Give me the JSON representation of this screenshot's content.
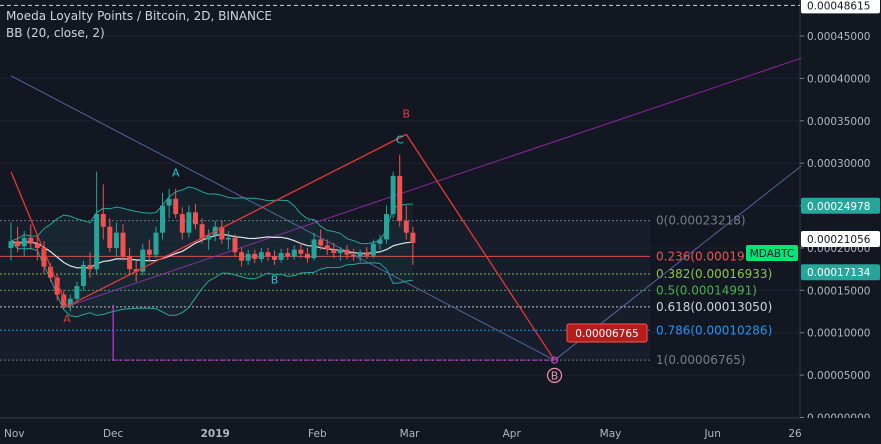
{
  "header": {
    "title": "Moeda Loyalty Points / Bitcoin, 2D, BINANCE",
    "indicator": "BB (20, close, 2)"
  },
  "colors": {
    "background": "#131722",
    "up": "#26a69a",
    "down": "#ef5350",
    "pattern": "#e53935",
    "bb_band": "#26a69a",
    "bb_basis": "#e0e3eb",
    "diag_trend": "#5b6da8",
    "diag_purple": "#9c27b0",
    "symbol_tag": "#00e676"
  },
  "chart_data": {
    "type": "candlestick",
    "title": "Moeda Loyalty Points / Bitcoin, 2D, BINANCE",
    "symbol_tag": "MDABTC",
    "x_tick_labels": [
      "Nov",
      "Dec",
      "2019",
      "Feb",
      "Mar",
      "Apr",
      "May",
      "Jun",
      "26"
    ],
    "y_tick_labels": [
      "0.00048615",
      "0.00045000",
      "0.00040000",
      "0.00035000",
      "0.00030000",
      "0.00025000",
      "0.00020000",
      "0.00015000",
      "0.00010000",
      "0.00005000",
      "0.00000000"
    ],
    "y_range": [
      -6e-07,
      0.0004925
    ],
    "price_tags": [
      {
        "label": "0.00048615",
        "value": 0.00048615,
        "style": "white"
      },
      {
        "label": "0.00024978",
        "value": 0.00024978,
        "style": "teal"
      },
      {
        "label": "0.00021056",
        "value": 0.00021056,
        "style": "white"
      },
      {
        "label": "0.00017134",
        "value": 0.00017134,
        "style": "teal"
      }
    ],
    "target_tag": {
      "label": "0.00006765",
      "value": 6.765e-05
    },
    "fibonacci": [
      {
        "label": "0(0.00023218)",
        "value": 0.00023218,
        "color": "#787b86"
      },
      {
        "label": "0.236(0.00019",
        "value": 0.00019,
        "color": "#ef5350"
      },
      {
        "label": "0.382(0.00016933)",
        "value": 0.00016933,
        "color": "#8bc34a"
      },
      {
        "label": "0.5(0.00014991)",
        "value": 0.00014991,
        "color": "#4caf50"
      },
      {
        "label": "0.618(0.00013050)",
        "value": 0.0001305,
        "color": "#d1d4dc"
      },
      {
        "label": "0.786(0.00010286)",
        "value": 0.00010286,
        "color": "#2196f3"
      },
      {
        "label": "1(0.00006765)",
        "value": 6.765e-05,
        "color": "#787b86"
      }
    ],
    "pattern_labels": [
      {
        "label": "A",
        "color": "#e53935",
        "x": "2018-11-17",
        "y": 0.000112
      },
      {
        "label": "A",
        "color": "#26c6da",
        "x": "2018-12-20",
        "y": 0.000284
      },
      {
        "label": "B",
        "color": "#26c6da",
        "x": "2019-01-19",
        "y": 0.000158
      },
      {
        "label": "B",
        "color": "#e53935",
        "x": "2019-02-28",
        "y": 0.000354
      },
      {
        "label": "C",
        "color": "#26c6da",
        "x": "2019-02-26",
        "y": 0.000323
      },
      {
        "label": "B",
        "color": "#f48fb1",
        "x": "2019-04-14",
        "y": 4.5e-05
      }
    ],
    "harmonic_path": [
      {
        "x": "2018-10-31",
        "y": 0.00029
      },
      {
        "x": "2018-11-17",
        "y": 0.000131
      },
      {
        "x": "2019-02-28",
        "y": 0.000334
      },
      {
        "x": "2019-04-14",
        "y": 6.76e-05
      }
    ],
    "trend_lines": [
      {
        "name": "descending",
        "from": {
          "x": "2018-10-31",
          "y": 0.000403
        },
        "to": {
          "x": "2019-04-14",
          "y": 6.76e-05
        }
      },
      {
        "name": "rising",
        "from": {
          "x": "2019-04-14",
          "y": 6.76e-05
        },
        "to": {
          "x": "2019-06-28",
          "y": 0.000297
        }
      },
      {
        "name": "channel",
        "from": {
          "x": "2018-11-17",
          "y": 0.000131
        },
        "to": {
          "x": "2019-06-28",
          "y": 0.000424
        }
      }
    ],
    "projection": {
      "from": {
        "x": "2018-12-01",
        "y": 0.000133
      },
      "to": {
        "x": "2019-04-14",
        "y": 6.76e-05
      }
    },
    "series": [
      {
        "name": "MDABTC",
        "ohlc": [
          {
            "t": "2018-10-31",
            "o": 0.0002,
            "h": 0.00023,
            "l": 0.000185,
            "c": 0.000208
          },
          {
            "t": "2018-11-02",
            "o": 0.000208,
            "h": 0.000225,
            "l": 0.000195,
            "c": 0.000202
          },
          {
            "t": "2018-11-04",
            "o": 0.000202,
            "h": 0.00022,
            "l": 0.00019,
            "c": 0.000212
          },
          {
            "t": "2018-11-06",
            "o": 0.000212,
            "h": 0.000228,
            "l": 0.000198,
            "c": 0.000205
          },
          {
            "t": "2018-11-08",
            "o": 0.000205,
            "h": 0.000215,
            "l": 0.000185,
            "c": 0.0002
          },
          {
            "t": "2018-11-10",
            "o": 0.0002,
            "h": 0.000208,
            "l": 0.00017,
            "c": 0.000178
          },
          {
            "t": "2018-11-12",
            "o": 0.000178,
            "h": 0.000182,
            "l": 0.00016,
            "c": 0.000165
          },
          {
            "t": "2018-11-14",
            "o": 0.000165,
            "h": 0.00017,
            "l": 0.000138,
            "c": 0.000145
          },
          {
            "t": "2018-11-16",
            "o": 0.000145,
            "h": 0.00015,
            "l": 0.000128,
            "c": 0.000132
          },
          {
            "t": "2018-11-18",
            "o": 0.000132,
            "h": 0.000145,
            "l": 0.000125,
            "c": 0.00014
          },
          {
            "t": "2018-11-20",
            "o": 0.00014,
            "h": 0.00016,
            "l": 0.000135,
            "c": 0.000155
          },
          {
            "t": "2018-11-22",
            "o": 0.000155,
            "h": 0.000185,
            "l": 0.00015,
            "c": 0.00018
          },
          {
            "t": "2018-11-24",
            "o": 0.00018,
            "h": 0.000195,
            "l": 0.000165,
            "c": 0.000175
          },
          {
            "t": "2018-11-26",
            "o": 0.000175,
            "h": 0.00029,
            "l": 0.00017,
            "c": 0.00024
          },
          {
            "t": "2018-11-28",
            "o": 0.00024,
            "h": 0.000275,
            "l": 0.00021,
            "c": 0.000225
          },
          {
            "t": "2018-11-30",
            "o": 0.000225,
            "h": 0.000235,
            "l": 0.000195,
            "c": 0.0002
          },
          {
            "t": "2018-12-02",
            "o": 0.0002,
            "h": 0.00023,
            "l": 0.00019,
            "c": 0.000218
          },
          {
            "t": "2018-12-04",
            "o": 0.000218,
            "h": 0.000228,
            "l": 0.000185,
            "c": 0.00019
          },
          {
            "t": "2018-12-06",
            "o": 0.00019,
            "h": 0.0002,
            "l": 0.00017,
            "c": 0.000175
          },
          {
            "t": "2018-12-08",
            "o": 0.000175,
            "h": 0.000185,
            "l": 0.00016,
            "c": 0.000172
          },
          {
            "t": "2018-12-10",
            "o": 0.000172,
            "h": 0.000205,
            "l": 0.000168,
            "c": 0.000198
          },
          {
            "t": "2018-12-12",
            "o": 0.000198,
            "h": 0.00021,
            "l": 0.000185,
            "c": 0.000192
          },
          {
            "t": "2018-12-14",
            "o": 0.000192,
            "h": 0.000225,
            "l": 0.000188,
            "c": 0.000218
          },
          {
            "t": "2018-12-16",
            "o": 0.000218,
            "h": 0.000265,
            "l": 0.00021,
            "c": 0.00025
          },
          {
            "t": "2018-12-18",
            "o": 0.00025,
            "h": 0.00027,
            "l": 0.000235,
            "c": 0.000258
          },
          {
            "t": "2018-12-20",
            "o": 0.000258,
            "h": 0.00027,
            "l": 0.000235,
            "c": 0.00024
          },
          {
            "t": "2018-12-22",
            "o": 0.00024,
            "h": 0.000248,
            "l": 0.00021,
            "c": 0.000218
          },
          {
            "t": "2018-12-24",
            "o": 0.000218,
            "h": 0.00025,
            "l": 0.000212,
            "c": 0.000242
          },
          {
            "t": "2018-12-26",
            "o": 0.000242,
            "h": 0.000252,
            "l": 0.000222,
            "c": 0.000228
          },
          {
            "t": "2018-12-28",
            "o": 0.000228,
            "h": 0.000235,
            "l": 0.000205,
            "c": 0.00021
          },
          {
            "t": "2018-12-30",
            "o": 0.00021,
            "h": 0.000222,
            "l": 0.000198,
            "c": 0.000215
          },
          {
            "t": "2019-01-01",
            "o": 0.000215,
            "h": 0.000232,
            "l": 0.000208,
            "c": 0.000225
          },
          {
            "t": "2019-01-03",
            "o": 0.000225,
            "h": 0.000232,
            "l": 0.000205,
            "c": 0.00021
          },
          {
            "t": "2019-01-05",
            "o": 0.00021,
            "h": 0.00022,
            "l": 0.000198,
            "c": 0.000212
          },
          {
            "t": "2019-01-07",
            "o": 0.000212,
            "h": 0.000216,
            "l": 0.00019,
            "c": 0.000195
          },
          {
            "t": "2019-01-09",
            "o": 0.000195,
            "h": 0.0002,
            "l": 0.000178,
            "c": 0.000185
          },
          {
            "t": "2019-01-11",
            "o": 0.000185,
            "h": 0.000198,
            "l": 0.00018,
            "c": 0.000193
          },
          {
            "t": "2019-01-13",
            "o": 0.000193,
            "h": 0.000198,
            "l": 0.000182,
            "c": 0.000187
          },
          {
            "t": "2019-01-15",
            "o": 0.000187,
            "h": 0.0002,
            "l": 0.000183,
            "c": 0.000195
          },
          {
            "t": "2019-01-17",
            "o": 0.000195,
            "h": 0.0002,
            "l": 0.000185,
            "c": 0.00019
          },
          {
            "t": "2019-01-19",
            "o": 0.00019,
            "h": 0.000197,
            "l": 0.00018,
            "c": 0.000186
          },
          {
            "t": "2019-01-21",
            "o": 0.000186,
            "h": 0.000199,
            "l": 0.000183,
            "c": 0.000194
          },
          {
            "t": "2019-01-23",
            "o": 0.000194,
            "h": 0.0002,
            "l": 0.000186,
            "c": 0.00019
          },
          {
            "t": "2019-01-25",
            "o": 0.00019,
            "h": 0.000203,
            "l": 0.000186,
            "c": 0.000198
          },
          {
            "t": "2019-01-27",
            "o": 0.000198,
            "h": 0.000206,
            "l": 0.000188,
            "c": 0.000193
          },
          {
            "t": "2019-01-29",
            "o": 0.000193,
            "h": 0.0002,
            "l": 0.000183,
            "c": 0.000188
          },
          {
            "t": "2019-01-31",
            "o": 0.000188,
            "h": 0.000218,
            "l": 0.000185,
            "c": 0.00021
          },
          {
            "t": "2019-02-02",
            "o": 0.00021,
            "h": 0.000222,
            "l": 0.000198,
            "c": 0.000203
          },
          {
            "t": "2019-02-04",
            "o": 0.000203,
            "h": 0.00021,
            "l": 0.000192,
            "c": 0.000198
          },
          {
            "t": "2019-02-06",
            "o": 0.000198,
            "h": 0.000206,
            "l": 0.000188,
            "c": 0.000194
          },
          {
            "t": "2019-02-08",
            "o": 0.000194,
            "h": 0.000201,
            "l": 0.000185,
            "c": 0.000198
          },
          {
            "t": "2019-02-10",
            "o": 0.000198,
            "h": 0.000203,
            "l": 0.000187,
            "c": 0.000192
          },
          {
            "t": "2019-02-12",
            "o": 0.000192,
            "h": 0.000199,
            "l": 0.000185,
            "c": 0.00019
          },
          {
            "t": "2019-02-14",
            "o": 0.00019,
            "h": 0.000198,
            "l": 0.000184,
            "c": 0.000195
          },
          {
            "t": "2019-02-16",
            "o": 0.000195,
            "h": 0.000201,
            "l": 0.000187,
            "c": 0.000191
          },
          {
            "t": "2019-02-18",
            "o": 0.000191,
            "h": 0.00021,
            "l": 0.000188,
            "c": 0.000205
          },
          {
            "t": "2019-02-20",
            "o": 0.000205,
            "h": 0.000215,
            "l": 0.000198,
            "c": 0.00021
          },
          {
            "t": "2019-02-22",
            "o": 0.00021,
            "h": 0.00025,
            "l": 0.000205,
            "c": 0.00024
          },
          {
            "t": "2019-02-24",
            "o": 0.00024,
            "h": 0.00029,
            "l": 0.000235,
            "c": 0.000285
          },
          {
            "t": "2019-02-26",
            "o": 0.000285,
            "h": 0.00031,
            "l": 0.000225,
            "c": 0.000232
          },
          {
            "t": "2019-02-28",
            "o": 0.000232,
            "h": 0.00025,
            "l": 0.00021,
            "c": 0.000218
          },
          {
            "t": "2019-03-02",
            "o": 0.000218,
            "h": 0.000225,
            "l": 0.00018,
            "c": 0.000206
          }
        ]
      },
      {
        "name": "BB basis",
        "role": "bb_basis"
      },
      {
        "name": "BB upper",
        "role": "bb_upper"
      },
      {
        "name": "BB lower",
        "role": "bb_lower"
      }
    ]
  }
}
